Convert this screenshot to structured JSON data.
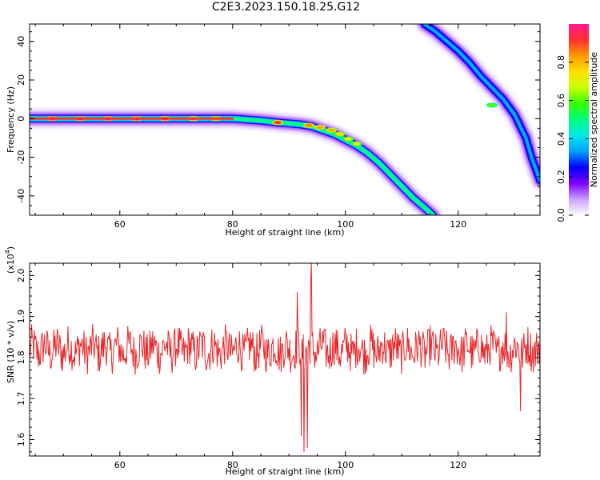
{
  "page_title": "C2E3.2023.150.18.25.G12",
  "colors": {
    "snr_line": "#e8282b",
    "colormap": [
      "#ffffff",
      "#c9a0ff",
      "#7d00ff",
      "#0000ff",
      "#00a0ff",
      "#00e8e8",
      "#00ff7f",
      "#32ff00",
      "#c8ff00",
      "#ffe000",
      "#ff9a00",
      "#ff3030",
      "#ff1a8c"
    ]
  },
  "chart_data": [
    {
      "type": "heatmap",
      "title": "C2E3.2023.150.18.25.G12",
      "xlabel": "Height of straight line (km)",
      "ylabel": "Frequency (Hz)",
      "xlim": [
        44,
        134.5
      ],
      "ylim": [
        -50,
        49
      ],
      "x_ticks": [
        60,
        80,
        100,
        120
      ],
      "y_ticks": [
        -40,
        -20,
        0,
        20,
        40
      ],
      "colorbar": {
        "label": "Normalized spectral amplitude",
        "range": [
          0,
          1
        ],
        "ticks": [
          "0.0",
          "0.2",
          "0.4",
          "0.6",
          "0.8"
        ]
      },
      "traces": [
        {
          "points": [
            [
              44,
              0
            ],
            [
              50,
              0
            ],
            [
              60,
              0
            ],
            [
              70,
              0
            ],
            [
              80,
              0
            ],
            [
              85,
              -1
            ],
            [
              88,
              -2
            ],
            [
              90,
              -2.5
            ],
            [
              92,
              -3
            ],
            [
              94,
              -4
            ],
            [
              96,
              -6
            ],
            [
              98,
              -8
            ],
            [
              100,
              -11
            ],
            [
              102,
              -14
            ],
            [
              104,
              -18
            ],
            [
              106,
              -23
            ],
            [
              108,
              -29
            ],
            [
              110,
              -35
            ],
            [
              112,
              -41
            ],
            [
              114,
              -46
            ],
            [
              115.5,
              -50
            ]
          ],
          "peaks": [
            [
              48,
              0,
              1.0
            ],
            [
              53,
              0,
              0.97
            ],
            [
              58,
              0,
              0.98
            ],
            [
              63,
              0,
              0.97
            ],
            [
              68,
              0,
              0.95
            ],
            [
              73,
              0,
              0.85
            ],
            [
              77,
              0,
              0.8
            ],
            [
              88,
              -2,
              0.9
            ],
            [
              93.5,
              -3.5,
              0.85
            ],
            [
              95.5,
              -4.5,
              0.82
            ],
            [
              97.5,
              -6,
              0.8
            ],
            [
              99,
              -8,
              0.75
            ],
            [
              100.5,
              -10.5,
              0.72
            ],
            [
              102,
              -13,
              0.7
            ]
          ],
          "base_level": 0.5
        },
        {
          "points": [
            [
              114,
              49
            ],
            [
              116,
              45
            ],
            [
              118,
              40
            ],
            [
              120,
              35
            ],
            [
              122,
              29
            ],
            [
              124,
              22
            ],
            [
              126,
              16
            ],
            [
              128,
              10
            ],
            [
              130,
              2
            ],
            [
              132,
              -10
            ],
            [
              133,
              -20
            ],
            [
              134,
              -28
            ],
            [
              134.5,
              -32
            ]
          ],
          "peaks": [
            [
              126,
              7,
              0.6
            ]
          ],
          "base_level": 0.35
        }
      ]
    },
    {
      "type": "line",
      "xlabel": "Height of straight line (km)",
      "ylabel": "SNR (10 * v/v)",
      "multiplier_label": "(x10",
      "multiplier_exponent": "4",
      "multiplier_close": ")",
      "xlim": [
        44,
        134.5
      ],
      "ylim": [
        1.56,
        2.03
      ],
      "x_ticks": [
        60,
        80,
        100,
        120
      ],
      "y_ticks": [
        "1.6",
        "1.7",
        "1.8",
        "1.9",
        "2.0"
      ],
      "series": [
        {
          "x_start": 44,
          "x_end": 134.5,
          "base_mean": 1.82,
          "noise_amplitude": 0.05,
          "sample_count": 760,
          "features": [
            {
              "x": 91.5,
              "y": 1.96
            },
            {
              "x": 92.2,
              "y": 1.61
            },
            {
              "x": 92.7,
              "y": 1.57
            },
            {
              "x": 93.3,
              "y": 1.58
            },
            {
              "x": 93.8,
              "y": 1.99
            },
            {
              "x": 94.0,
              "y": 2.03
            },
            {
              "x": 128.5,
              "y": 1.91
            },
            {
              "x": 131.0,
              "y": 1.67
            }
          ]
        }
      ]
    }
  ]
}
